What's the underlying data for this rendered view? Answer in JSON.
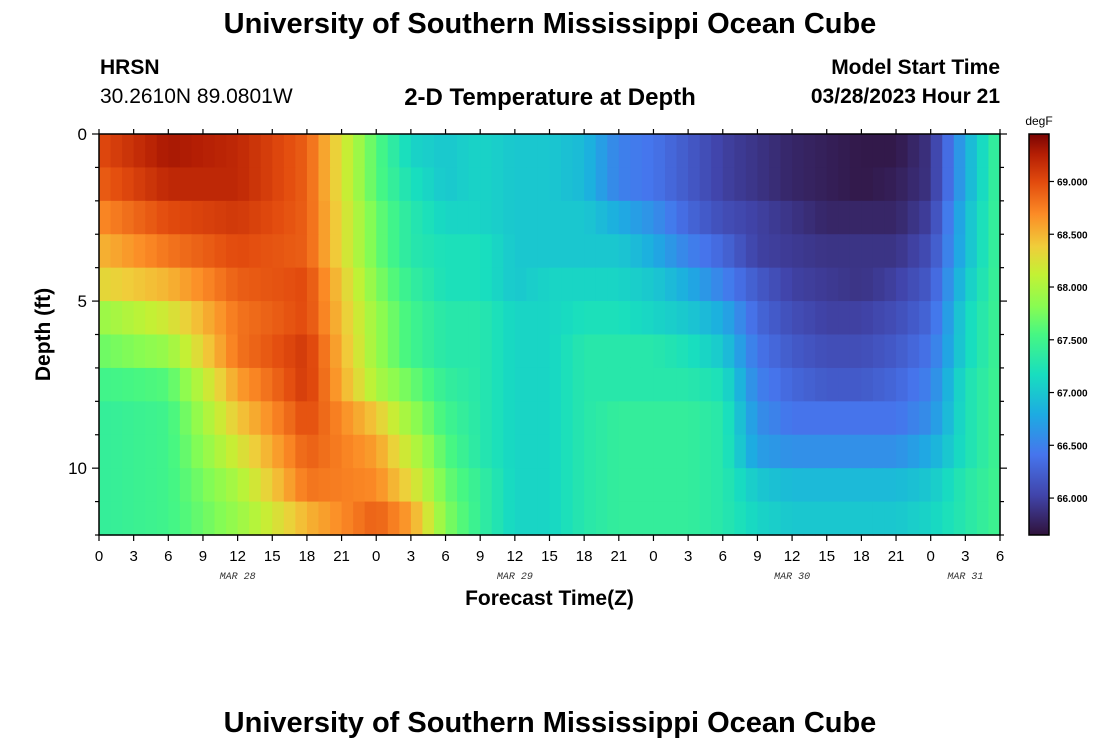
{
  "header": {
    "title": "University of Southern Mississippi Ocean Cube",
    "station": "HRSN",
    "coords": "30.2610N  89.0801W",
    "plot_title": "2-D Temperature at Depth",
    "start_label": "Model Start Time",
    "start_value": "03/28/2023 Hour 21"
  },
  "footer": {
    "title": "University of Southern Mississippi Ocean Cube"
  },
  "chart_data": {
    "type": "heatmap",
    "xlabel": "Forecast Time(Z)",
    "ylabel": "Depth (ft)",
    "x_ticks": [
      "0",
      "3",
      "6",
      "9",
      "12",
      "15",
      "18",
      "21",
      "0",
      "3",
      "6",
      "9",
      "12",
      "15",
      "18",
      "21",
      "0",
      "3",
      "6",
      "9",
      "12",
      "15",
      "18",
      "21",
      "0",
      "3",
      "6"
    ],
    "date_labels": [
      "MAR 28",
      "MAR 29",
      "MAR 30",
      "MAR 31"
    ],
    "date_label_hours": [
      12,
      36,
      60,
      75
    ],
    "x_range_hours": [
      0,
      78
    ],
    "y_ticks": [
      0,
      5,
      10
    ],
    "ylim": [
      0,
      12
    ],
    "y_inverted": true,
    "colorbar": {
      "unit": "degF",
      "min": 65.65,
      "max": 69.45,
      "tick_values": [
        66.0,
        66.5,
        67.0,
        67.5,
        68.0,
        68.5,
        69.0
      ],
      "tick_labels": [
        "66.000",
        "66.500",
        "67.000",
        "67.500",
        "68.000",
        "68.500",
        "69.000"
      ]
    },
    "row_depths_ft": [
      0.5,
      1.5,
      2.5,
      3.5,
      4.5,
      5.5,
      6.5,
      7.5,
      8.5,
      9.5,
      10.5,
      11.5
    ],
    "col_hours": [
      0,
      6,
      12,
      18,
      24,
      27,
      30,
      33,
      36,
      39,
      42,
      45,
      48,
      51,
      54,
      57,
      60,
      63,
      66,
      69,
      72,
      75,
      78
    ],
    "values": [
      [
        69.0,
        69.3,
        69.2,
        68.9,
        67.6,
        67.1,
        67.0,
        67.1,
        67.0,
        67.0,
        66.9,
        66.5,
        66.4,
        66.2,
        66.0,
        65.9,
        65.8,
        65.75,
        65.7,
        65.7,
        65.9,
        66.8,
        67.5
      ],
      [
        68.9,
        69.2,
        69.2,
        68.9,
        67.6,
        67.2,
        67.0,
        67.1,
        67.0,
        67.0,
        66.9,
        66.5,
        66.4,
        66.2,
        66.0,
        65.9,
        65.8,
        65.75,
        65.7,
        65.75,
        65.9,
        66.8,
        67.5
      ],
      [
        68.7,
        69.0,
        69.1,
        68.9,
        67.7,
        67.3,
        67.1,
        67.1,
        67.0,
        67.0,
        67.0,
        66.8,
        66.6,
        66.3,
        66.1,
        66.0,
        65.9,
        65.8,
        65.8,
        65.8,
        66.0,
        66.9,
        67.5
      ],
      [
        68.5,
        68.8,
        69.0,
        68.9,
        67.7,
        67.3,
        67.2,
        67.2,
        67.0,
        67.0,
        67.0,
        67.0,
        66.8,
        66.5,
        66.3,
        66.0,
        65.95,
        65.9,
        65.9,
        65.9,
        66.1,
        66.9,
        67.5
      ],
      [
        68.3,
        68.5,
        68.9,
        69.0,
        67.8,
        67.4,
        67.2,
        67.2,
        67.0,
        67.1,
        67.1,
        67.1,
        67.0,
        66.8,
        66.5,
        66.2,
        66.0,
        65.95,
        65.9,
        66.0,
        66.2,
        67.0,
        67.5
      ],
      [
        67.9,
        68.2,
        68.8,
        69.0,
        67.9,
        67.5,
        67.3,
        67.3,
        67.1,
        67.1,
        67.2,
        67.2,
        67.1,
        67.0,
        66.8,
        66.3,
        66.1,
        66.0,
        66.0,
        66.1,
        66.3,
        67.1,
        67.5
      ],
      [
        67.7,
        67.9,
        68.8,
        69.1,
        67.9,
        67.5,
        67.3,
        67.3,
        67.1,
        67.1,
        67.3,
        67.3,
        67.3,
        67.2,
        67.0,
        66.4,
        66.2,
        66.1,
        66.1,
        66.2,
        66.4,
        67.1,
        67.5
      ],
      [
        67.5,
        67.6,
        68.6,
        69.1,
        68.0,
        67.7,
        67.4,
        67.3,
        67.1,
        67.1,
        67.3,
        67.3,
        67.3,
        67.3,
        67.2,
        66.5,
        66.3,
        66.2,
        66.2,
        66.3,
        66.5,
        67.2,
        67.5
      ],
      [
        67.4,
        67.5,
        68.4,
        69.0,
        68.4,
        67.9,
        67.5,
        67.3,
        67.1,
        67.1,
        67.3,
        67.4,
        67.4,
        67.4,
        67.3,
        66.6,
        66.4,
        66.4,
        66.4,
        66.4,
        66.6,
        67.2,
        67.5
      ],
      [
        67.4,
        67.5,
        68.2,
        68.9,
        68.6,
        68.1,
        67.6,
        67.3,
        67.1,
        67.1,
        67.3,
        67.4,
        67.4,
        67.4,
        67.3,
        66.7,
        66.6,
        66.6,
        66.6,
        66.6,
        66.8,
        67.2,
        67.5
      ],
      [
        67.4,
        67.5,
        68.0,
        68.8,
        68.7,
        68.3,
        67.7,
        67.4,
        67.1,
        67.1,
        67.3,
        67.4,
        67.4,
        67.4,
        67.3,
        67.0,
        66.9,
        66.9,
        66.9,
        66.9,
        67.0,
        67.3,
        67.5
      ],
      [
        67.4,
        67.5,
        67.9,
        68.5,
        68.9,
        68.6,
        67.8,
        67.4,
        67.1,
        67.1,
        67.3,
        67.4,
        67.4,
        67.4,
        67.3,
        67.1,
        67.0,
        67.0,
        67.0,
        67.0,
        67.1,
        67.3,
        67.5
      ]
    ]
  }
}
